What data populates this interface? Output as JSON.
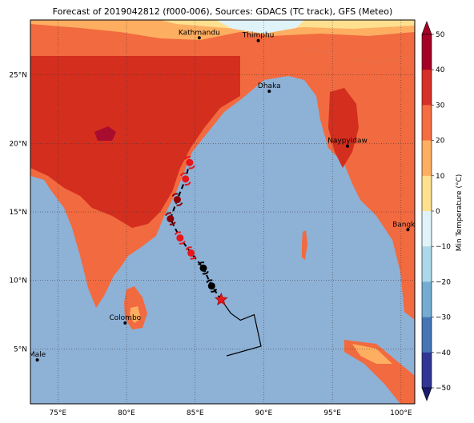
{
  "title": "Forecast of 2019042812 (f000-006), Sources: GDACS (TC track), GFS (Meteo)",
  "map": {
    "lon_range": [
      73,
      101
    ],
    "lat_range": [
      1,
      29
    ],
    "lat_ticks": [
      {
        "value": 5,
        "label": "5°N"
      },
      {
        "value": 10,
        "label": "10°N"
      },
      {
        "value": 15,
        "label": "15°N"
      },
      {
        "value": 20,
        "label": "20°N"
      },
      {
        "value": 25,
        "label": "25°N"
      }
    ],
    "lon_ticks": [
      {
        "value": 75,
        "label": "75°E"
      },
      {
        "value": 80,
        "label": "80°E"
      },
      {
        "value": 85,
        "label": "85°E"
      },
      {
        "value": 90,
        "label": "90°E"
      },
      {
        "value": 95,
        "label": "95°E"
      },
      {
        "value": 100,
        "label": "100°E"
      }
    ],
    "colors": {
      "ocean": "#8eb1d6",
      "land_warm": "#f26a3f",
      "land_hot": "#d42e1f",
      "land_very_hot": "#a80c2e",
      "land_mild": "#fdae61",
      "land_cool": "#fee090",
      "snow": "#e0f3f8"
    }
  },
  "cities": [
    {
      "name": "Kathmandu",
      "lon": 85.3,
      "lat": 27.7
    },
    {
      "name": "Thimphu",
      "lon": 89.6,
      "lat": 27.5
    },
    {
      "name": "Dhaka",
      "lon": 90.4,
      "lat": 23.8
    },
    {
      "name": "Naypyidaw",
      "lon": 96.1,
      "lat": 19.8
    },
    {
      "name": "Bangkok",
      "lon": 100.5,
      "lat": 13.7
    },
    {
      "name": "Colombo",
      "lon": 79.9,
      "lat": 6.9
    },
    {
      "name": "Male",
      "lon": 73.5,
      "lat": 4.2
    }
  ],
  "track": {
    "past": [
      [
        87.3,
        4.5
      ],
      [
        89.8,
        5.2
      ],
      [
        89.3,
        7.5
      ],
      [
        88.3,
        7.1
      ],
      [
        87.6,
        7.6
      ],
      [
        86.9,
        8.6
      ]
    ],
    "current": {
      "lon": 86.9,
      "lat": 8.6
    },
    "forecast": [
      {
        "lon": 86.2,
        "lat": 9.6,
        "color": "#000000"
      },
      {
        "lon": 85.6,
        "lat": 10.9,
        "color": "#000000"
      },
      {
        "lon": 84.7,
        "lat": 12.0,
        "color": "#e8151b"
      },
      {
        "lon": 83.9,
        "lat": 13.1,
        "color": "#e8151b"
      },
      {
        "lon": 83.2,
        "lat": 14.5,
        "color": "#8b0000"
      },
      {
        "lon": 83.7,
        "lat": 15.9,
        "color": "#8b0000"
      },
      {
        "lon": 84.3,
        "lat": 17.4,
        "color": "#e8151b"
      },
      {
        "lon": 84.6,
        "lat": 18.6,
        "color": "#e8151b"
      }
    ]
  },
  "colorbar": {
    "label": "Min Temperature (°C)",
    "ticks": [
      "50",
      "40",
      "30",
      "20",
      "10",
      "0",
      "−10",
      "−20",
      "−30",
      "−40",
      "−50"
    ],
    "bands": [
      "#a50026",
      "#d73027",
      "#f46d43",
      "#fdae61",
      "#fee090",
      "#ffffbf",
      "#e0f3f8",
      "#abd9e9",
      "#74add1",
      "#4575b4",
      "#313695"
    ]
  }
}
